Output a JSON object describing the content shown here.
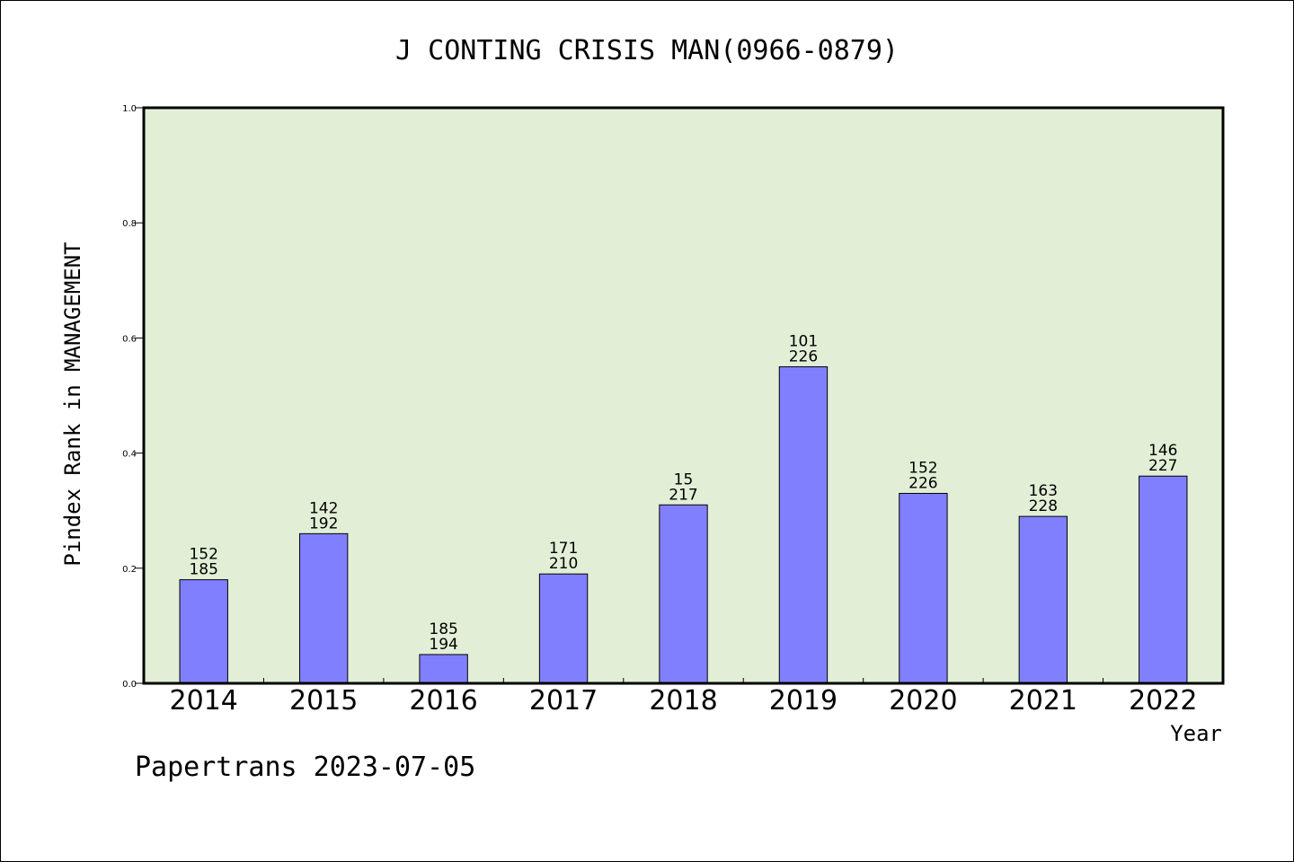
{
  "chart_data": {
    "type": "bar",
    "title": "J CONTING CRISIS MAN(0966-0879)",
    "xlabel": "Year",
    "ylabel": "Pindex Rank in MANAGEMENT",
    "ylim": [
      0,
      1.0
    ],
    "yticks": [
      "0.0",
      "0.2",
      "0.4",
      "0.6",
      "0.8",
      "1.0"
    ],
    "grid": false,
    "plot_background": "#e2efd6",
    "bar_color": "#8080ff",
    "categories": [
      "2014",
      "2015",
      "2016",
      "2017",
      "2018",
      "2019",
      "2020",
      "2021",
      "2022"
    ],
    "values": [
      0.18,
      0.26,
      0.05,
      0.19,
      0.31,
      0.55,
      0.33,
      0.29,
      0.36
    ],
    "labels_top": [
      "152",
      "142",
      "185",
      "171",
      "15",
      "101",
      "152",
      "163",
      "146"
    ],
    "labels_bottom": [
      "185",
      "192",
      "194",
      "210",
      "217",
      "226",
      "226",
      "228",
      "227"
    ]
  },
  "footer": "Papertrans 2023-07-05"
}
